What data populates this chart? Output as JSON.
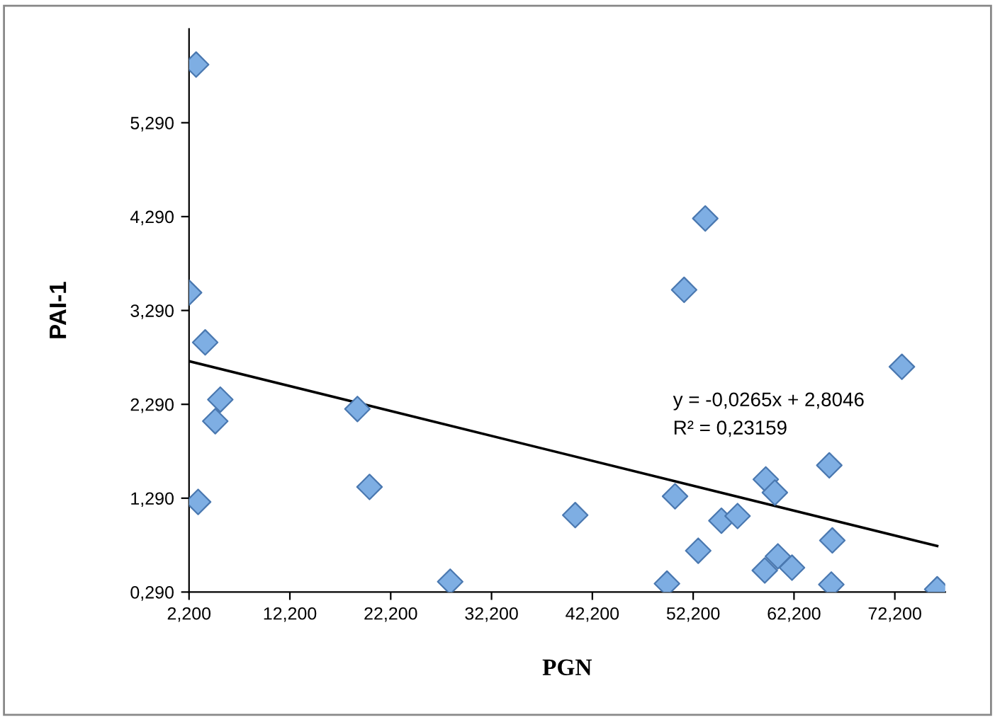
{
  "chart_data": {
    "type": "scatter",
    "xlabel": "PGN",
    "ylabel": "PAI-1",
    "marker": "diamond",
    "grid": false,
    "legend": false,
    "xlim": [
      2.2,
      77.2
    ],
    "ylim": [
      0.29,
      6.29
    ],
    "xticks": [
      {
        "value": 2.2,
        "label": "2,200"
      },
      {
        "value": 12.2,
        "label": "12,200"
      },
      {
        "value": 22.2,
        "label": "22,200"
      },
      {
        "value": 32.2,
        "label": "32,200"
      },
      {
        "value": 42.2,
        "label": "42,200"
      },
      {
        "value": 52.2,
        "label": "52,200"
      },
      {
        "value": 62.2,
        "label": "62,200"
      },
      {
        "value": 72.2,
        "label": "72,200"
      }
    ],
    "yticks": [
      {
        "value": 0.29,
        "label": "0,290"
      },
      {
        "value": 1.29,
        "label": "1,290"
      },
      {
        "value": 2.29,
        "label": "2,290"
      },
      {
        "value": 3.29,
        "label": "3,290"
      },
      {
        "value": 4.29,
        "label": "4,290"
      },
      {
        "value": 5.29,
        "label": "5,290"
      }
    ],
    "series": [
      {
        "color": "#7eaee3",
        "x": [
          2.9,
          2.2,
          3.8,
          5.3,
          4.8,
          3.1,
          18.9,
          20.1,
          28.1,
          40.5,
          49.6,
          50.4,
          51.3,
          53.4,
          52.7,
          55.0,
          56.6,
          59.4,
          60.3,
          59.3,
          60.6,
          62.0,
          65.7,
          66.0,
          65.9,
          72.9,
          76.4
        ],
        "values": [
          5.91,
          3.48,
          2.95,
          2.34,
          2.11,
          1.25,
          2.24,
          1.41,
          0.4,
          1.11,
          0.38,
          1.31,
          3.51,
          4.27,
          0.73,
          1.05,
          1.1,
          1.49,
          1.35,
          0.52,
          0.67,
          0.55,
          1.64,
          0.84,
          0.37,
          2.69,
          0.32
        ]
      },
      {
        "type": "line",
        "color": "#000000",
        "marker": "none",
        "x": [
          2.2,
          76.4
        ],
        "values": [
          2.75,
          0.78
        ]
      }
    ],
    "annotations": [
      "y = -0,0265x + 2,8046",
      "R² = 0,23159"
    ]
  }
}
